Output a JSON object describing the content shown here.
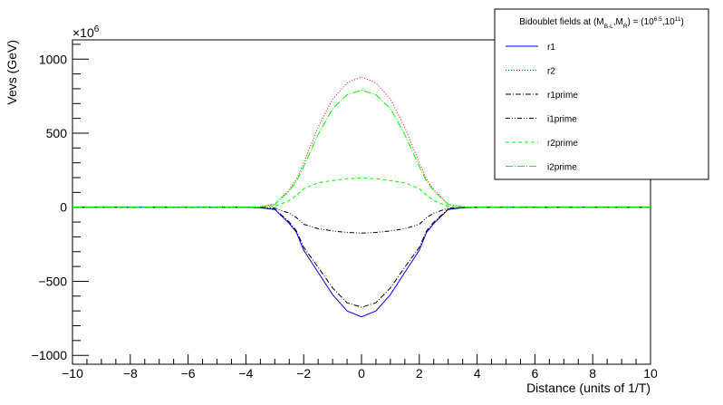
{
  "chart_data": {
    "type": "line",
    "title": "",
    "xlabel": "Distance (units of 1/T)",
    "ylabel": "Vevs (GeV)",
    "y_multiplier_label": "×10",
    "y_multiplier_exponent": "6",
    "xlim": [
      -10,
      10
    ],
    "ylim": [
      -1060,
      1130
    ],
    "x_ticks": [
      -10,
      -8,
      -6,
      -4,
      -2,
      0,
      2,
      4,
      6,
      8,
      10
    ],
    "x_tick_labels": [
      "−10",
      "−8",
      "−6",
      "−4",
      "−2",
      "0",
      "2",
      "4",
      "6",
      "8",
      "10"
    ],
    "y_ticks": [
      -1000,
      -500,
      0,
      500,
      1000
    ],
    "y_tick_labels": [
      "−1000",
      "−500",
      "0",
      "500",
      "1000"
    ],
    "grid": false,
    "legend": {
      "position": "top-right",
      "title_parts": [
        "Bidoublet fields at (M",
        "B-L",
        ",M",
        "R",
        ") = (10",
        "6.5",
        ",10",
        "11",
        ")"
      ]
    },
    "x": [
      -10,
      -4,
      -3.5,
      -3,
      -2.5,
      -2.25,
      -2,
      -1.5,
      -1,
      -0.5,
      0,
      0.5,
      1,
      1.5,
      2,
      2.25,
      2.5,
      3,
      3.5,
      4,
      10
    ],
    "series": [
      {
        "name": "r1",
        "color": "#0000ff",
        "dash": "solid",
        "values": [
          0,
          0,
          -3,
          -15,
          -110,
          -170,
          -290,
          -440,
          -590,
          -700,
          -740,
          -700,
          -590,
          -440,
          -290,
          -170,
          -110,
          -15,
          -3,
          0,
          0
        ]
      },
      {
        "name": "r2",
        "color": "#ff0000",
        "dash": "1,2",
        "values": [
          0,
          0,
          3,
          20,
          120,
          190,
          300,
          540,
          730,
          840,
          880,
          840,
          730,
          540,
          300,
          190,
          120,
          20,
          3,
          0,
          0
        ]
      },
      {
        "name": "r1prime",
        "color": "#000000",
        "dash": "6,2,1,2",
        "values": [
          0,
          0,
          -3,
          -13,
          -100,
          -160,
          -270,
          -405,
          -545,
          -645,
          -675,
          -645,
          -545,
          -405,
          -270,
          -160,
          -100,
          -13,
          -3,
          0,
          0
        ]
      },
      {
        "name": "i1prime",
        "color": "#000000",
        "dash": "5,2,1,2,1,2",
        "values": [
          0,
          0,
          -1,
          -6,
          -40,
          -70,
          -115,
          -145,
          -160,
          -170,
          -175,
          -170,
          -160,
          -145,
          -115,
          -70,
          -40,
          -6,
          -1,
          0,
          0
        ]
      },
      {
        "name": "r2prime",
        "color": "#00ff00",
        "dash": "4,3",
        "values": [
          0,
          0,
          1,
          6,
          45,
          80,
          125,
          165,
          180,
          193,
          197,
          193,
          180,
          165,
          125,
          80,
          45,
          6,
          1,
          0,
          0
        ]
      },
      {
        "name": "i2prime",
        "color": "#00ff00",
        "dash": "8,2,1,2",
        "values": [
          0,
          0,
          3,
          18,
          110,
          175,
          275,
          490,
          665,
          760,
          790,
          760,
          665,
          490,
          275,
          175,
          110,
          18,
          3,
          0,
          0
        ]
      }
    ]
  }
}
